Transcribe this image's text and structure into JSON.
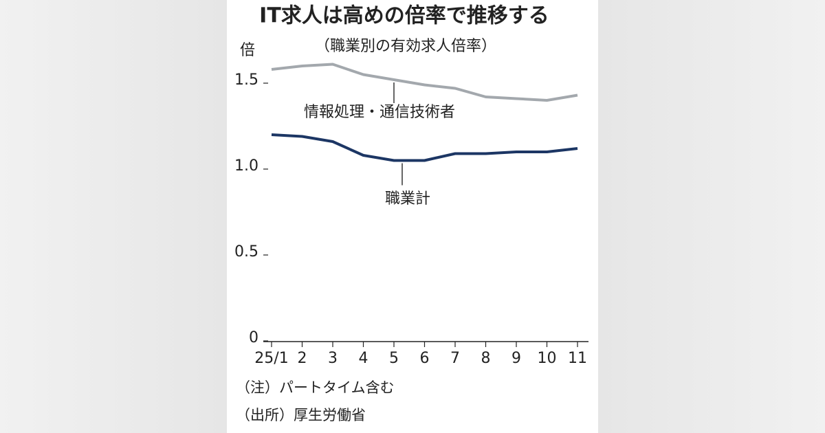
{
  "chart_data": {
    "type": "line",
    "title": "IT求人は高めの倍率で推移する",
    "subtitle": "（職業別の有効求人倍率）",
    "y_label": "倍",
    "categories": [
      "25/1",
      "2",
      "3",
      "4",
      "5",
      "6",
      "7",
      "8",
      "9",
      "10",
      "11"
    ],
    "series": [
      {
        "name": "情報処理・通信技術者",
        "color": "#a3a8ad",
        "values": [
          1.58,
          1.6,
          1.61,
          1.55,
          1.52,
          1.49,
          1.47,
          1.42,
          1.41,
          1.4,
          1.43
        ]
      },
      {
        "name": "職業計",
        "color": "#1c3664",
        "values": [
          1.2,
          1.19,
          1.16,
          1.08,
          1.05,
          1.05,
          1.09,
          1.09,
          1.1,
          1.1,
          1.12
        ]
      }
    ],
    "ylim": [
      0,
      1.6
    ],
    "yticks": [
      0,
      0.5,
      {
        "value": 1,
        "label": "1.0"
      },
      1.5
    ],
    "notes": [
      "（注）パートタイム含む",
      "（出所）厚生労働省"
    ]
  }
}
